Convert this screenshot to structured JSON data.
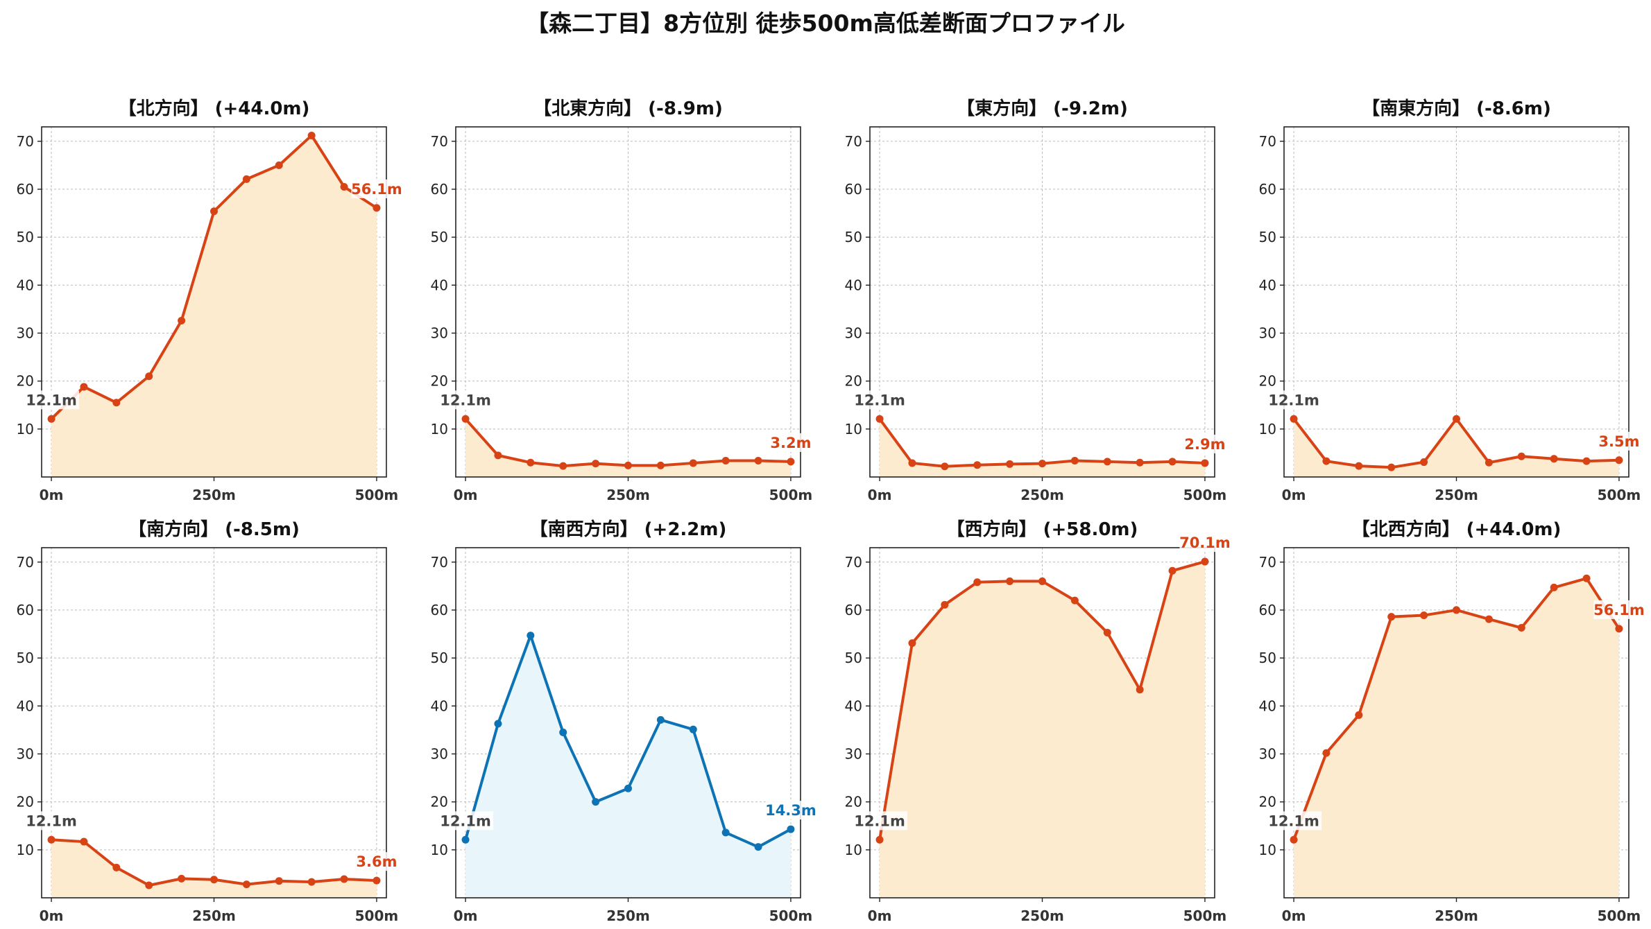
{
  "title": "【森二丁目】8方位別 徒歩500m高低差断面プロファイル",
  "colors": {
    "up_line": "#d84315",
    "up_fill": "#fdebd0",
    "down_line": "#0d73b4",
    "down_fill": "#e8f5fb",
    "start_label": "#444444",
    "grid": "#bbbbbb"
  },
  "chart_data": [
    {
      "type": "area",
      "title": "【北方向】 (+44.0m)",
      "x": [
        0,
        50,
        100,
        150,
        200,
        250,
        300,
        350,
        400,
        450,
        500
      ],
      "series": [
        {
          "values": [
            12.1,
            18.8,
            15.5,
            21.0,
            32.6,
            55.4,
            62.1,
            65.0,
            71.2,
            60.5,
            56.1
          ]
        }
      ],
      "xticks": [
        "0m",
        "250m",
        "500m"
      ],
      "yticks": [
        10,
        20,
        30,
        40,
        50,
        60,
        70
      ],
      "ylim": [
        0,
        73
      ],
      "xlim": [
        -15,
        515
      ],
      "start_label": "12.1m",
      "end_label": "56.1m",
      "style": "up",
      "grid": true
    },
    {
      "type": "area",
      "title": "【北東方向】 (-8.9m)",
      "x": [
        0,
        50,
        100,
        150,
        200,
        250,
        300,
        350,
        400,
        450,
        500
      ],
      "series": [
        {
          "values": [
            12.1,
            4.5,
            3.0,
            2.3,
            2.8,
            2.4,
            2.4,
            2.9,
            3.4,
            3.4,
            3.2
          ]
        }
      ],
      "xticks": [
        "0m",
        "250m",
        "500m"
      ],
      "yticks": [
        10,
        20,
        30,
        40,
        50,
        60,
        70
      ],
      "ylim": [
        0,
        73
      ],
      "xlim": [
        -15,
        515
      ],
      "start_label": "12.1m",
      "end_label": "3.2m",
      "style": "up",
      "grid": true
    },
    {
      "type": "area",
      "title": "【東方向】 (-9.2m)",
      "x": [
        0,
        50,
        100,
        150,
        200,
        250,
        300,
        350,
        400,
        450,
        500
      ],
      "series": [
        {
          "values": [
            12.1,
            2.9,
            2.2,
            2.5,
            2.7,
            2.8,
            3.4,
            3.2,
            3.0,
            3.2,
            2.9
          ]
        }
      ],
      "xticks": [
        "0m",
        "250m",
        "500m"
      ],
      "yticks": [
        10,
        20,
        30,
        40,
        50,
        60,
        70
      ],
      "ylim": [
        0,
        73
      ],
      "xlim": [
        -15,
        515
      ],
      "start_label": "12.1m",
      "end_label": "2.9m",
      "style": "up",
      "grid": true
    },
    {
      "type": "area",
      "title": "【南東方向】 (-8.6m)",
      "x": [
        0,
        50,
        100,
        150,
        200,
        250,
        300,
        350,
        400,
        450,
        500
      ],
      "series": [
        {
          "values": [
            12.1,
            3.3,
            2.3,
            2.0,
            3.1,
            12.1,
            3.0,
            4.3,
            3.8,
            3.3,
            3.5
          ]
        }
      ],
      "xticks": [
        "0m",
        "250m",
        "500m"
      ],
      "yticks": [
        10,
        20,
        30,
        40,
        50,
        60,
        70
      ],
      "ylim": [
        0,
        73
      ],
      "xlim": [
        -15,
        515
      ],
      "start_label": "12.1m",
      "end_label": "3.5m",
      "style": "up",
      "grid": true
    },
    {
      "type": "area",
      "title": "【南方向】 (-8.5m)",
      "x": [
        0,
        50,
        100,
        150,
        200,
        250,
        300,
        350,
        400,
        450,
        500
      ],
      "series": [
        {
          "values": [
            12.1,
            11.7,
            6.3,
            2.6,
            4.0,
            3.8,
            2.8,
            3.5,
            3.3,
            3.9,
            3.6
          ]
        }
      ],
      "xticks": [
        "0m",
        "250m",
        "500m"
      ],
      "yticks": [
        10,
        20,
        30,
        40,
        50,
        60,
        70
      ],
      "ylim": [
        0,
        73
      ],
      "xlim": [
        -15,
        515
      ],
      "start_label": "12.1m",
      "end_label": "3.6m",
      "style": "up",
      "grid": true
    },
    {
      "type": "area",
      "title": "【南西方向】 (+2.2m)",
      "x": [
        0,
        50,
        100,
        150,
        200,
        250,
        300,
        350,
        400,
        450,
        500
      ],
      "series": [
        {
          "values": [
            12.1,
            36.3,
            54.7,
            34.5,
            20.0,
            22.8,
            37.1,
            35.1,
            13.6,
            10.6,
            14.3
          ]
        }
      ],
      "xticks": [
        "0m",
        "250m",
        "500m"
      ],
      "yticks": [
        10,
        20,
        30,
        40,
        50,
        60,
        70
      ],
      "ylim": [
        0,
        73
      ],
      "xlim": [
        -15,
        515
      ],
      "start_label": "12.1m",
      "end_label": "14.3m",
      "style": "down",
      "grid": true
    },
    {
      "type": "area",
      "title": "【西方向】 (+58.0m)",
      "x": [
        0,
        50,
        100,
        150,
        200,
        250,
        300,
        350,
        400,
        450,
        500
      ],
      "series": [
        {
          "values": [
            12.1,
            53.1,
            61.1,
            65.8,
            66.0,
            66.0,
            62.0,
            55.3,
            43.4,
            68.2,
            70.1
          ]
        }
      ],
      "xticks": [
        "0m",
        "250m",
        "500m"
      ],
      "yticks": [
        10,
        20,
        30,
        40,
        50,
        60,
        70
      ],
      "ylim": [
        0,
        73
      ],
      "xlim": [
        -15,
        515
      ],
      "start_label": "12.1m",
      "end_label": "70.1m",
      "style": "up",
      "grid": true
    },
    {
      "type": "area",
      "title": "【北西方向】 (+44.0m)",
      "x": [
        0,
        50,
        100,
        150,
        200,
        250,
        300,
        350,
        400,
        450,
        500
      ],
      "series": [
        {
          "values": [
            12.1,
            30.2,
            38.1,
            58.6,
            58.9,
            60.0,
            58.1,
            56.3,
            64.7,
            66.6,
            56.1
          ]
        }
      ],
      "xticks": [
        "0m",
        "250m",
        "500m"
      ],
      "yticks": [
        10,
        20,
        30,
        40,
        50,
        60,
        70
      ],
      "ylim": [
        0,
        73
      ],
      "xlim": [
        -15,
        515
      ],
      "start_label": "12.1m",
      "end_label": "56.1m",
      "style": "up",
      "grid": true
    }
  ]
}
